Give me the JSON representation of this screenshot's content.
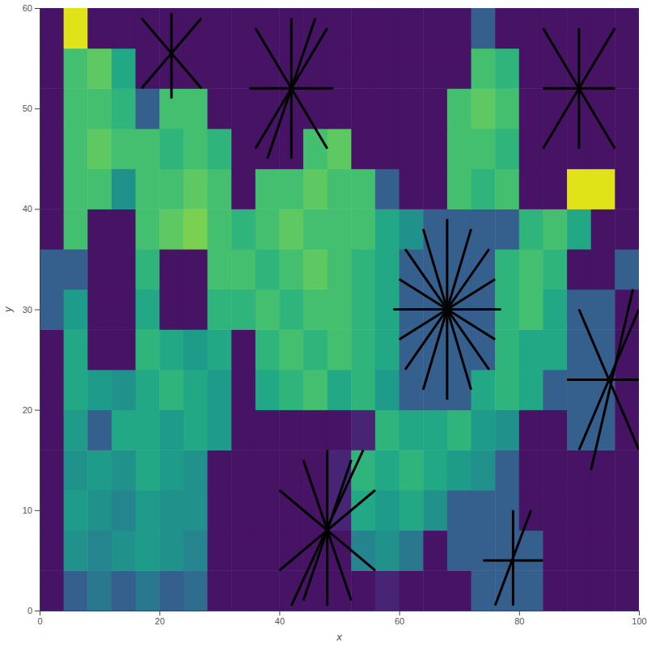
{
  "chart_data": {
    "type": "heatmap",
    "x_label": "x",
    "y_label": "y",
    "xlim": [
      0,
      100
    ],
    "ylim": [
      0,
      60
    ],
    "xticks": [
      0,
      20,
      40,
      60,
      80,
      100
    ],
    "yticks": [
      0,
      10,
      20,
      30,
      40,
      50,
      60
    ],
    "zlim": [
      0,
      1
    ],
    "x_edges": [
      0,
      4,
      8,
      12,
      16,
      20,
      24,
      28,
      32,
      36,
      40,
      44,
      48,
      52,
      56,
      60,
      64,
      68,
      72,
      76,
      80,
      84,
      88,
      92,
      96,
      100
    ],
    "y_edges": [
      0,
      4,
      8,
      12,
      16,
      20,
      24,
      28,
      32,
      36,
      40,
      44,
      48,
      52,
      56,
      60
    ],
    "z": [
      [
        0.05,
        0.3,
        0.4,
        0.3,
        0.4,
        0.3,
        0.35,
        0.05,
        0.05,
        0.05,
        0.05,
        0.05,
        0.05,
        0.05,
        0.1,
        0.05,
        0.05,
        0.05,
        0.3,
        0.3,
        0.3,
        0.05,
        0.05,
        0.05,
        0.05
      ],
      [
        0.05,
        0.5,
        0.45,
        0.5,
        0.55,
        0.5,
        0.45,
        0.05,
        0.05,
        0.05,
        0.05,
        0.05,
        0.05,
        0.45,
        0.5,
        0.4,
        0.05,
        0.3,
        0.3,
        0.3,
        0.3,
        0.05,
        0.05,
        0.05,
        0.05
      ],
      [
        0.05,
        0.55,
        0.5,
        0.45,
        0.55,
        0.5,
        0.5,
        0.05,
        0.05,
        0.05,
        0.05,
        0.05,
        0.1,
        0.6,
        0.55,
        0.6,
        0.5,
        0.3,
        0.3,
        0.3,
        0.05,
        0.05,
        0.05,
        0.05,
        0.05
      ],
      [
        0.05,
        0.5,
        0.55,
        0.5,
        0.6,
        0.55,
        0.5,
        0.05,
        0.05,
        0.05,
        0.05,
        0.05,
        0.1,
        0.65,
        0.6,
        0.65,
        0.6,
        0.55,
        0.5,
        0.3,
        0.05,
        0.05,
        0.05,
        0.05,
        0.05
      ],
      [
        0.05,
        0.55,
        0.3,
        0.6,
        0.6,
        0.55,
        0.6,
        0.55,
        0.05,
        0.05,
        0.05,
        0.05,
        0.05,
        0.1,
        0.65,
        0.6,
        0.6,
        0.65,
        0.55,
        0.5,
        0.05,
        0.05,
        0.3,
        0.3,
        0.05
      ],
      [
        0.05,
        0.6,
        0.55,
        0.5,
        0.6,
        0.65,
        0.6,
        0.55,
        0.05,
        0.6,
        0.65,
        0.7,
        0.6,
        0.65,
        0.55,
        0.3,
        0.3,
        0.3,
        0.6,
        0.65,
        0.6,
        0.3,
        0.3,
        0.3,
        0.05
      ],
      [
        0.05,
        0.6,
        0.05,
        0.05,
        0.65,
        0.6,
        0.55,
        0.6,
        0.05,
        0.65,
        0.7,
        0.65,
        0.7,
        0.65,
        0.6,
        0.3,
        0.3,
        0.3,
        0.3,
        0.65,
        0.6,
        0.6,
        0.3,
        0.3,
        0.05
      ],
      [
        0.3,
        0.55,
        0.05,
        0.05,
        0.6,
        0.05,
        0.05,
        0.65,
        0.65,
        0.7,
        0.65,
        0.7,
        0.7,
        0.65,
        0.6,
        0.3,
        0.3,
        0.3,
        0.3,
        0.65,
        0.7,
        0.6,
        0.3,
        0.3,
        0.05
      ],
      [
        0.3,
        0.3,
        0.05,
        0.05,
        0.65,
        0.05,
        0.05,
        0.7,
        0.7,
        0.65,
        0.7,
        0.75,
        0.7,
        0.65,
        0.6,
        0.3,
        0.3,
        0.3,
        0.3,
        0.65,
        0.7,
        0.65,
        0.05,
        0.05,
        0.3
      ],
      [
        0.05,
        0.7,
        0.05,
        0.05,
        0.7,
        0.75,
        0.8,
        0.7,
        0.65,
        0.7,
        0.75,
        0.7,
        0.7,
        0.7,
        0.6,
        0.5,
        0.3,
        0.3,
        0.3,
        0.3,
        0.65,
        0.7,
        0.6,
        0.05,
        0.05
      ],
      [
        0.05,
        0.7,
        0.7,
        0.5,
        0.7,
        0.7,
        0.75,
        0.7,
        0.05,
        0.7,
        0.7,
        0.75,
        0.7,
        0.7,
        0.3,
        0.05,
        0.05,
        0.7,
        0.65,
        0.7,
        0.05,
        0.05,
        0.95,
        0.95,
        0.05
      ],
      [
        0.05,
        0.7,
        0.75,
        0.7,
        0.7,
        0.65,
        0.7,
        0.65,
        0.05,
        0.05,
        0.05,
        0.7,
        0.75,
        0.05,
        0.05,
        0.05,
        0.05,
        0.7,
        0.7,
        0.65,
        0.05,
        0.05,
        0.05,
        0.05,
        0.05
      ],
      [
        0.05,
        0.7,
        0.7,
        0.65,
        0.3,
        0.7,
        0.7,
        0.05,
        0.05,
        0.05,
        0.05,
        0.05,
        0.05,
        0.05,
        0.05,
        0.05,
        0.05,
        0.7,
        0.75,
        0.7,
        0.05,
        0.05,
        0.05,
        0.05,
        0.05
      ],
      [
        0.05,
        0.7,
        0.75,
        0.6,
        0.05,
        0.05,
        0.05,
        0.05,
        0.05,
        0.05,
        0.05,
        0.05,
        0.05,
        0.05,
        0.05,
        0.05,
        0.05,
        0.05,
        0.7,
        0.65,
        0.05,
        0.05,
        0.05,
        0.05,
        0.05
      ],
      [
        0.05,
        0.95,
        0.05,
        0.05,
        0.05,
        0.05,
        0.05,
        0.05,
        0.05,
        0.05,
        0.05,
        0.05,
        0.05,
        0.05,
        0.05,
        0.05,
        0.05,
        0.05,
        0.3,
        0.05,
        0.05,
        0.05,
        0.05,
        0.05,
        0.05
      ]
    ],
    "segments": {
      "x0": [
        59,
        68,
        61,
        61,
        64,
        64,
        60,
        60,
        42,
        48,
        40,
        40,
        44,
        52,
        36,
        42,
        35,
        36,
        38,
        90,
        88,
        92,
        90,
        17,
        22,
        17,
        84,
        84,
        90,
        84,
        76,
        74,
        79
      ],
      "y0": [
        30,
        21,
        24,
        36,
        22,
        38,
        27,
        33,
        0.5,
        0.5,
        4,
        12,
        1,
        1,
        46,
        45,
        52,
        58,
        45,
        16,
        23,
        14,
        30,
        52,
        51,
        59,
        46,
        52,
        46,
        58,
        0.5,
        5,
        0.5
      ],
      "x1": [
        77,
        68,
        75,
        75,
        72,
        72,
        76,
        76,
        54,
        48,
        56,
        56,
        52,
        44,
        48,
        42,
        49,
        48,
        46,
        100,
        100,
        99,
        100,
        27,
        22,
        27,
        96,
        96,
        90,
        96,
        82,
        84,
        79
      ],
      "y1": [
        30,
        39,
        36,
        24,
        38,
        22,
        33,
        27,
        16,
        16,
        12,
        4,
        15,
        15,
        58,
        59,
        52,
        46,
        59,
        30,
        23,
        32,
        16,
        59,
        59.5,
        52,
        58,
        52,
        58,
        46,
        10,
        5,
        10
      ]
    }
  }
}
